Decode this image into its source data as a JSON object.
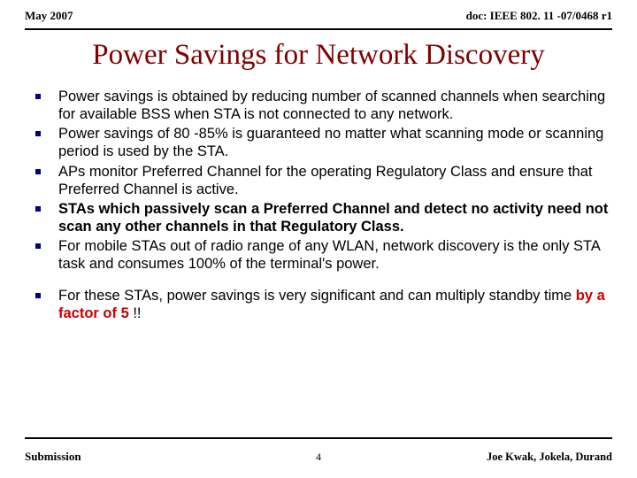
{
  "header": {
    "date": "May 2007",
    "doc": "doc: IEEE 802. 11 -07/0468 r1"
  },
  "title": "Power Savings for Network Discovery",
  "bullets_group1": [
    {
      "text": "Power savings is obtained by reducing number of scanned channels when searching for available BSS when STA is not connected to any network.",
      "bold": false
    },
    {
      "text": "Power savings of 80 -85% is guaranteed no matter what scanning mode or scanning period is used by the STA.",
      "bold": false
    },
    {
      "text": "APs monitor Preferred Channel for the operating Regulatory Class and ensure that Preferred Channel is active.",
      "bold": false
    },
    {
      "text": "STAs which passively scan a Preferred Channel and detect no activity need not scan any other channels in that Regulatory Class.",
      "bold": true
    },
    {
      "text": "For mobile STAs out of radio range of any WLAN, network discovery is the only STA task and consumes 100% of the terminal's power.",
      "bold": false
    }
  ],
  "bullets_group2_prefix": "For these STAs, power savings is very significant and can multiply standby time ",
  "bullets_group2_highlight": "by a factor of 5",
  "bullets_group2_suffix": "  !!",
  "footer": {
    "left": "Submission",
    "page": "4",
    "right": "Joe Kwak, Jokela, Durand"
  }
}
